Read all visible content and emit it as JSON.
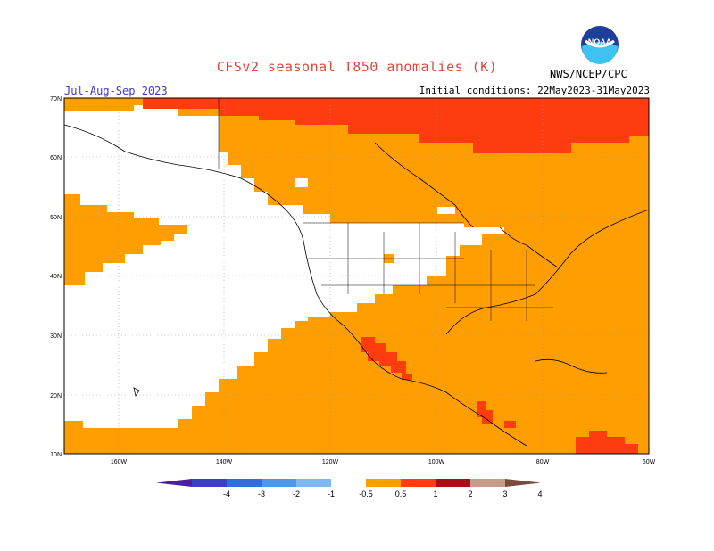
{
  "header": {
    "title": "CFSv2 seasonal T850 anomalies (K)",
    "season": "Jul-Aug-Sep 2023",
    "initial_conditions": "Initial conditions: 22May2023-31May2023",
    "agency": "NWS/NCEP/CPC",
    "logo_text": "NOAA"
  },
  "axes": {
    "lat_labels": [
      "70N",
      "60N",
      "50N",
      "40N",
      "30N",
      "20N",
      "10N"
    ],
    "lon_labels": [
      "160W",
      "140W",
      "120W",
      "100W",
      "80W",
      "60W"
    ]
  },
  "colorbar": {
    "ticks": [
      "-4",
      "-3",
      "-2",
      "-1",
      "-0.5",
      "0.5",
      "1",
      "2",
      "3",
      "4"
    ],
    "colors": [
      "#4b1fa0",
      "#3a3ec8",
      "#2f6ee0",
      "#4c96ee",
      "#7db8f4",
      "#ffffff",
      "#ff9e00",
      "#ff3b10",
      "#a50f15",
      "#c89a8a",
      "#7a4a3a"
    ]
  },
  "colors": {
    "anomaly_0_5_1": "#ff9e00",
    "anomaly_1_2": "#ff3b10",
    "anomaly_2_3": "#a50f15",
    "neutral": "#ffffff",
    "title": "#e0443a",
    "season": "#3a3acc"
  }
}
